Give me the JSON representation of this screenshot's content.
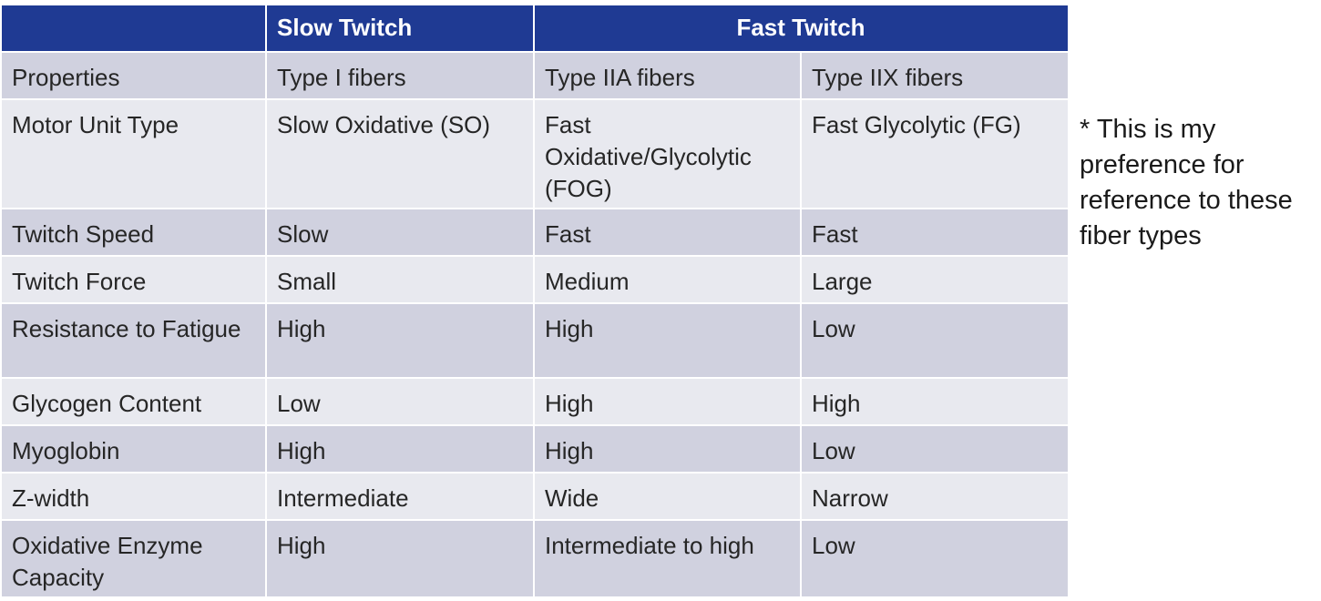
{
  "table": {
    "header": [
      "Slow Twitch",
      "Fast Twitch"
    ],
    "rows": [
      [
        "Properties",
        "Type I fibers",
        "Type IIA fibers",
        "Type IIX fibers"
      ],
      [
        "Motor Unit Type",
        "Slow Oxidative (SO)",
        "Fast Oxidative/Glycolytic (FOG)",
        "Fast Glycolytic (FG)"
      ],
      [
        "Twitch Speed",
        "Slow",
        "Fast",
        "Fast"
      ],
      [
        "Twitch Force",
        "Small",
        "Medium",
        "Large"
      ],
      [
        "Resistance to Fatigue",
        "High",
        "High",
        "Low"
      ],
      [
        "Glycogen Content",
        "Low",
        "High",
        "High"
      ],
      [
        "Myoglobin",
        "High",
        "High",
        "Low"
      ],
      [
        "Z-width",
        "Intermediate",
        "Wide",
        "Narrow"
      ],
      [
        "Oxidative Enzyme Capacity",
        "High",
        "Intermediate to high",
        "Low"
      ]
    ]
  },
  "note": "* This is my preference for reference to these fiber types"
}
